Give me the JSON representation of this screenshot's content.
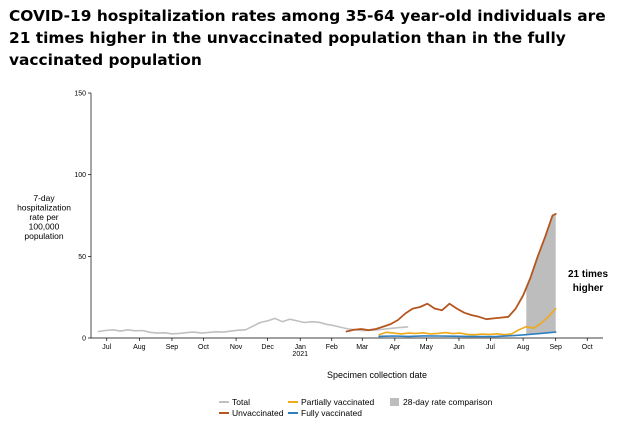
{
  "title": "COVID-19 hospitalization rates among 35-64 year-old individuals are 21 times higher in the unvaccinated population than in the fully vaccinated population",
  "chart_data": {
    "type": "line",
    "ylabel_lines": [
      "7-day",
      "hospitalization",
      "rate per",
      "100,000",
      "population"
    ],
    "xlabel": "Specimen collection date",
    "ylim": [
      0,
      150
    ],
    "yticks": [
      0,
      50,
      100,
      150
    ],
    "x_start": "2020-07-01",
    "x_end": "2021-10-31",
    "xticks": [
      {
        "label": "Jul",
        "date": "2020-07-16"
      },
      {
        "label": "Aug",
        "date": "2020-08-16"
      },
      {
        "label": "Sep",
        "date": "2020-09-16"
      },
      {
        "label": "Oct",
        "date": "2020-10-16"
      },
      {
        "label": "Nov",
        "date": "2020-11-16"
      },
      {
        "label": "Dec",
        "date": "2020-12-16"
      },
      {
        "label": "Jan",
        "sublabel": "2021",
        "date": "2021-01-16"
      },
      {
        "label": "Feb",
        "date": "2021-02-15"
      },
      {
        "label": "Mar",
        "date": "2021-03-16"
      },
      {
        "label": "Apr",
        "date": "2021-04-16"
      },
      {
        "label": "May",
        "date": "2021-05-16"
      },
      {
        "label": "Jun",
        "date": "2021-06-16"
      },
      {
        "label": "Jul",
        "date": "2021-07-16"
      },
      {
        "label": "Aug",
        "date": "2021-08-16"
      },
      {
        "label": "Sep",
        "date": "2021-09-16"
      },
      {
        "label": "Oct",
        "date": "2021-10-16"
      }
    ],
    "grid": false,
    "legend_position": "bottom",
    "annotation": [
      "21 times",
      "higher"
    ],
    "shaded_region": {
      "name": "28-day rate comparison",
      "color": "#bdbdbd",
      "x": [
        "2021-08-19",
        "2021-09-16"
      ]
    },
    "series": [
      {
        "name": "Total",
        "color": "#c0c0c0",
        "x": [
          "2020-07-08",
          "2020-07-15",
          "2020-07-22",
          "2020-07-29",
          "2020-08-05",
          "2020-08-12",
          "2020-08-19",
          "2020-08-26",
          "2020-09-02",
          "2020-09-09",
          "2020-09-16",
          "2020-09-23",
          "2020-09-30",
          "2020-10-07",
          "2020-10-14",
          "2020-10-21",
          "2020-10-28",
          "2020-11-04",
          "2020-11-11",
          "2020-11-18",
          "2020-11-25",
          "2020-12-02",
          "2020-12-09",
          "2020-12-16",
          "2020-12-23",
          "2020-12-30",
          "2021-01-06",
          "2021-01-13",
          "2021-01-20",
          "2021-01-27",
          "2021-02-03",
          "2021-02-10",
          "2021-02-17",
          "2021-02-24",
          "2021-03-03",
          "2021-03-10",
          "2021-03-17",
          "2021-03-24",
          "2021-03-31",
          "2021-04-07",
          "2021-04-14",
          "2021-04-21",
          "2021-04-28"
        ],
        "values": [
          4,
          4.6,
          5,
          4.2,
          5,
          4.4,
          4.6,
          3.5,
          3,
          3.2,
          2.6,
          2.8,
          3.3,
          3.6,
          3,
          3.4,
          3.8,
          3.6,
          4.2,
          4.8,
          5,
          7.2,
          9.5,
          10.5,
          12,
          10,
          11.5,
          10.5,
          9.5,
          10,
          9.6,
          8.4,
          7.6,
          6.5,
          5.5,
          5,
          4.5,
          4.7,
          5,
          5.5,
          6,
          6.5,
          6.8
        ]
      },
      {
        "name": "Unvaccinated",
        "color": "#b5561f",
        "x": [
          "2021-03-01",
          "2021-03-08",
          "2021-03-15",
          "2021-03-22",
          "2021-03-29",
          "2021-04-05",
          "2021-04-12",
          "2021-04-19",
          "2021-04-26",
          "2021-05-03",
          "2021-05-10",
          "2021-05-17",
          "2021-05-24",
          "2021-05-31",
          "2021-06-07",
          "2021-06-14",
          "2021-06-21",
          "2021-06-28",
          "2021-07-05",
          "2021-07-12",
          "2021-07-19",
          "2021-07-26",
          "2021-08-02",
          "2021-08-09",
          "2021-08-16",
          "2021-08-23",
          "2021-08-30",
          "2021-09-06",
          "2021-09-13",
          "2021-09-16"
        ],
        "values": [
          4,
          5,
          5.5,
          4.8,
          5.5,
          7,
          8.5,
          11,
          15,
          18,
          19,
          21,
          18,
          17,
          21,
          18,
          15.5,
          14,
          13,
          11.5,
          12,
          12.5,
          13,
          18,
          26,
          37,
          50,
          62,
          75,
          76
        ]
      },
      {
        "name": "Partially vaccinated",
        "color": "#f1a918",
        "x": [
          "2021-04-01",
          "2021-04-08",
          "2021-04-15",
          "2021-04-22",
          "2021-04-29",
          "2021-05-06",
          "2021-05-13",
          "2021-05-20",
          "2021-05-27",
          "2021-06-03",
          "2021-06-10",
          "2021-06-17",
          "2021-06-24",
          "2021-07-01",
          "2021-07-08",
          "2021-07-15",
          "2021-07-22",
          "2021-07-29",
          "2021-08-05",
          "2021-08-12",
          "2021-08-19",
          "2021-08-26",
          "2021-09-02",
          "2021-09-09",
          "2021-09-16"
        ],
        "values": [
          2,
          3.5,
          3,
          2.5,
          3,
          2.8,
          3.2,
          2.5,
          2.8,
          3.3,
          2.7,
          3,
          2.2,
          2,
          2.4,
          2.2,
          2.6,
          2,
          2.5,
          5,
          7,
          6,
          9,
          13,
          18
        ]
      },
      {
        "name": "Fully vaccinated",
        "color": "#2e7fc0",
        "x": [
          "2021-04-01",
          "2021-04-15",
          "2021-04-29",
          "2021-05-13",
          "2021-05-27",
          "2021-06-10",
          "2021-06-24",
          "2021-07-08",
          "2021-07-22",
          "2021-08-05",
          "2021-08-19",
          "2021-09-02",
          "2021-09-16"
        ],
        "values": [
          1,
          1.2,
          1,
          1.3,
          1.2,
          1.1,
          1,
          0.9,
          1,
          1.4,
          2,
          2.8,
          3.6
        ]
      }
    ],
    "legend": [
      {
        "label": "Total",
        "symbol": "line",
        "color": "#c0c0c0"
      },
      {
        "label": "Unvaccinated",
        "symbol": "line",
        "color": "#b5561f"
      },
      {
        "label": "Partially vaccinated",
        "symbol": "line",
        "color": "#f1a918"
      },
      {
        "label": "Fully vaccinated",
        "symbol": "line",
        "color": "#2e7fc0"
      },
      {
        "label": "28-day rate comparison",
        "symbol": "box",
        "color": "#bdbdbd"
      }
    ]
  }
}
